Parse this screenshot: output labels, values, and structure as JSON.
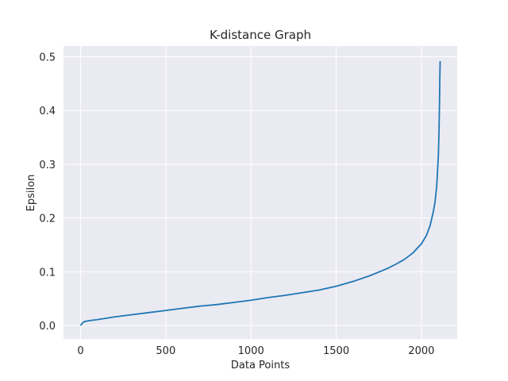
{
  "chart_data": {
    "type": "line",
    "title": "K-distance Graph",
    "xlabel": "Data Points",
    "ylabel": "Epsilon",
    "xlim": [
      -100,
      2210
    ],
    "ylim": [
      -0.025,
      0.52
    ],
    "xticks": [
      0,
      500,
      1000,
      1500,
      2000
    ],
    "yticks": [
      0.0,
      0.1,
      0.2,
      0.3,
      0.4,
      0.5
    ],
    "xtick_labels": [
      "0",
      "500",
      "1000",
      "1500",
      "2000"
    ],
    "ytick_labels": [
      "0.0",
      "0.1",
      "0.2",
      "0.3",
      "0.4",
      "0.5"
    ],
    "grid": true,
    "background_color": "#eaeaf2",
    "line_color": "#1f77b4",
    "series": [
      {
        "x": [
          0,
          10,
          20,
          50,
          100,
          200,
          300,
          400,
          500,
          600,
          700,
          800,
          900,
          1000,
          1100,
          1200,
          1300,
          1400,
          1500,
          1600,
          1700,
          1800,
          1850,
          1900,
          1950,
          2000,
          2030,
          2050,
          2060,
          2070,
          2080,
          2090,
          2095,
          2100,
          2103,
          2106,
          2108,
          2110
        ],
        "y": [
          0.0,
          0.004,
          0.007,
          0.009,
          0.011,
          0.016,
          0.02,
          0.024,
          0.028,
          0.032,
          0.036,
          0.039,
          0.043,
          0.047,
          0.052,
          0.056,
          0.061,
          0.066,
          0.073,
          0.082,
          0.093,
          0.106,
          0.114,
          0.123,
          0.135,
          0.152,
          0.168,
          0.185,
          0.198,
          0.212,
          0.23,
          0.26,
          0.29,
          0.32,
          0.36,
          0.41,
          0.46,
          0.492
        ]
      }
    ]
  }
}
